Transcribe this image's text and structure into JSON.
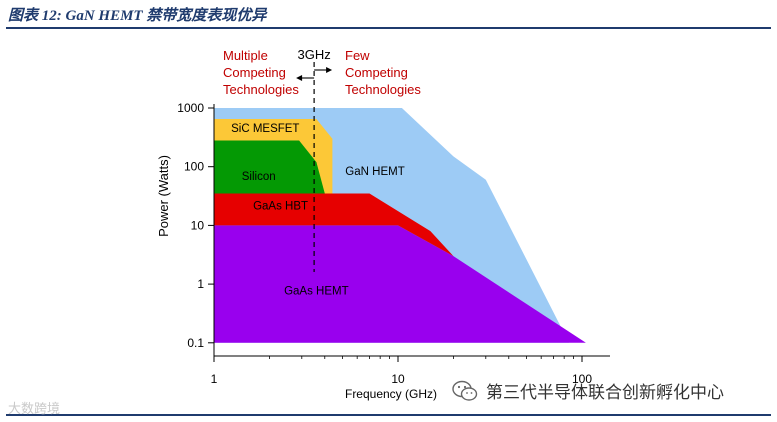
{
  "figure": {
    "title": "图表 12:  GaN HEMT 禁带宽度表现优异"
  },
  "chart_data": {
    "type": "area",
    "xlabel": "Frequency (GHz)",
    "ylabel": "Power (Watts)",
    "xscale": "log",
    "yscale": "log",
    "xlim": [
      1,
      120
    ],
    "ylim": [
      0.1,
      1000
    ],
    "x_ticks": [
      {
        "value": 1,
        "label": "1"
      },
      {
        "value": 10,
        "label": "10"
      },
      {
        "value": 100,
        "label": "100"
      }
    ],
    "y_ticks": [
      {
        "value": 1000,
        "label": "1000"
      },
      {
        "value": 100,
        "label": "100"
      },
      {
        "value": 10,
        "label": "10"
      },
      {
        "value": 1,
        "label": "1"
      },
      {
        "value": 0.1,
        "label": "0.1"
      }
    ],
    "grid": false,
    "regions": [
      {
        "name": "GaN HEMT",
        "color": "#9dcbf5",
        "points": [
          [
            1,
            0.1
          ],
          [
            1,
            1000
          ],
          [
            10.5,
            1000
          ],
          [
            20,
            150
          ],
          [
            30,
            60
          ],
          [
            85,
            0.1
          ]
        ]
      },
      {
        "name": "GaAs HEMT",
        "color": "#9900ee",
        "points": [
          [
            1,
            0.1
          ],
          [
            1,
            10
          ],
          [
            10,
            10
          ],
          [
            20,
            3
          ],
          [
            105,
            0.1
          ]
        ]
      },
      {
        "name": "GaAs HBT",
        "color": "#e60000",
        "points": [
          [
            1,
            10
          ],
          [
            1,
            35
          ],
          [
            7,
            35
          ],
          [
            15,
            8
          ],
          [
            20,
            3
          ],
          [
            10,
            10
          ]
        ]
      },
      {
        "name": "SiC MESFET",
        "color": "#fcc837",
        "points": [
          [
            1,
            35
          ],
          [
            1,
            650
          ],
          [
            3.6,
            650
          ],
          [
            4.4,
            300
          ],
          [
            4.4,
            35
          ]
        ]
      },
      {
        "name": "Silicon",
        "color": "#049904",
        "points": [
          [
            1,
            35
          ],
          [
            1,
            280
          ],
          [
            2.9,
            280
          ],
          [
            3.6,
            120
          ],
          [
            4,
            35
          ]
        ]
      }
    ],
    "region_labels": [
      {
        "text": "SiC MESFET",
        "x": 1.9,
        "y": 460,
        "color": "#000000"
      },
      {
        "text": "Silicon",
        "x": 1.75,
        "y": 70,
        "color": "#000000"
      },
      {
        "text": "GaN HEMT",
        "x": 7.5,
        "y": 85,
        "color": "#000000"
      },
      {
        "text": "GaAs HBT",
        "x": 2.3,
        "y": 22,
        "color": "#000000"
      },
      {
        "text": "GaAs HEMT",
        "x": 3.6,
        "y": 0.78,
        "color": "#000000"
      }
    ],
    "divider": {
      "x": 3.5,
      "label": "3GHz"
    },
    "annotations": {
      "left": "Multiple Competing Technologies",
      "left_lines": [
        "Multiple",
        "Competing",
        "Technologies"
      ],
      "right": "Few Competing Technologies",
      "right_lines": [
        "Few",
        "Competing",
        "Technologies"
      ],
      "color": "#c00000"
    }
  },
  "watermarks": {
    "left": "大数跨境",
    "right": "第三代半导体联合创新孵化中心"
  }
}
